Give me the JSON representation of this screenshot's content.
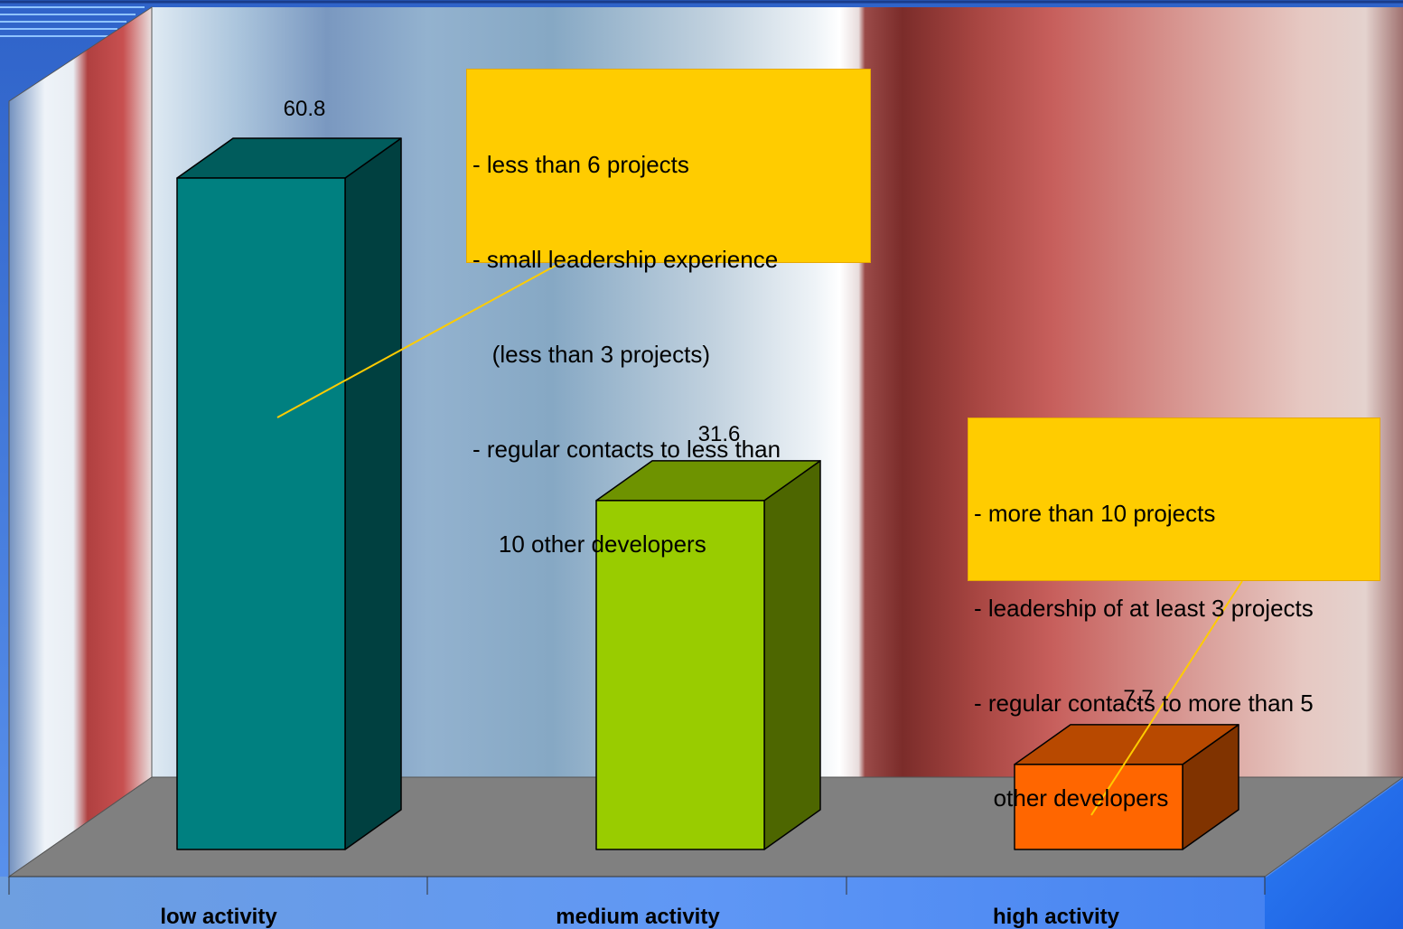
{
  "chart_data": {
    "type": "bar",
    "categories": [
      "low activity",
      "medium activity",
      "high activity"
    ],
    "values": [
      60.8,
      31.6,
      7.7
    ],
    "value_labels": [
      "60.8",
      "31.6",
      "7.7"
    ],
    "bar_colors": [
      "#008080",
      "#99cc00",
      "#ff6600"
    ],
    "ylim": [
      0,
      65
    ],
    "grid": false,
    "style": "3d-column"
  },
  "annotations": {
    "low": {
      "lines": [
        "- less than 6 projects",
        "- small leadership experience",
        "   (less than 3 projects)",
        "- regular contacts to less than",
        "    10 other developers"
      ]
    },
    "high": {
      "lines": [
        "- more than 10 projects",
        "- leadership of at least 3 projects",
        "- regular contacts to more than 5",
        "   other developers"
      ]
    }
  },
  "colors": {
    "callout_fill": "#ffcc00",
    "leader_line": "#ffcc00",
    "floor": "#808080"
  }
}
